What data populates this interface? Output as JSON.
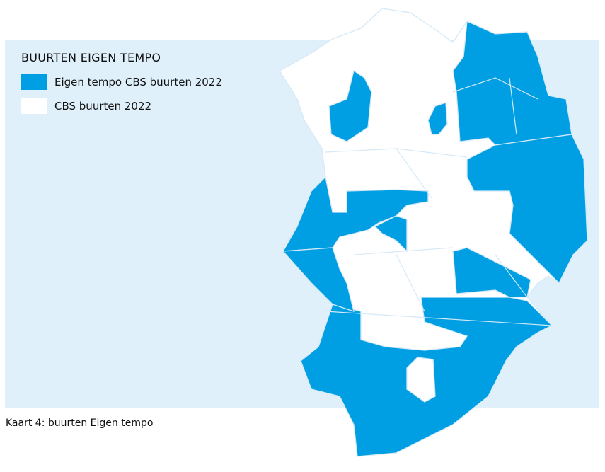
{
  "legend": {
    "title": "BUURTEN EIGEN TEMPO",
    "items": [
      {
        "label": "Eigen tempo CBS buurten 2022",
        "color": "#009fe3"
      },
      {
        "label": "CBS buurten 2022",
        "color": "#ffffff"
      }
    ]
  },
  "caption": "Kaart 4: buurten Eigen tempo",
  "colors": {
    "background": "#dff0fb",
    "highlight": "#009fe3",
    "base": "#ffffff",
    "border": "#d6e9f6"
  }
}
